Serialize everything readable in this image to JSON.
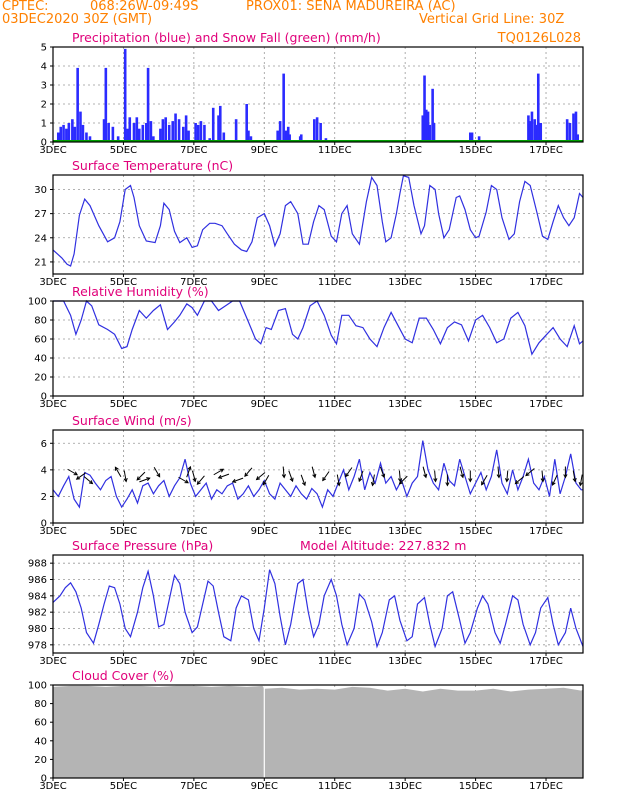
{
  "header": {
    "line1_left": "CPTEC:",
    "line1_coords": "068:26W-09:49S",
    "line1_station": "PROX01: SENA MADUREIRA (AC)",
    "line2_left": "03DEC2020 30Z (GMT)",
    "line2_right": "Vertical Grid Line: 30Z",
    "line3_right": "TQ0126L028"
  },
  "colors": {
    "header": "#ff8000",
    "title": "#e0007a",
    "precip": "#2b2bff",
    "snow": "#00a000",
    "line": "#3030e0",
    "cloud": "#b4b4b4",
    "grid": "#999999"
  },
  "x_axis": {
    "days": [
      "3DEC",
      "5DEC",
      "7DEC",
      "9DEC",
      "11DEC",
      "13DEC",
      "15DEC",
      "17DEC"
    ],
    "day_positions": [
      3,
      5,
      7,
      9,
      11,
      13,
      15,
      17
    ],
    "range": [
      3,
      18.05
    ]
  },
  "chart_data": [
    {
      "id": "precip",
      "type": "bar",
      "title": "Precipitation (blue) and Snow Fall (green) (mm/h)",
      "yticks": [
        0,
        1,
        2,
        3,
        4,
        5
      ],
      "ylim": [
        0,
        5
      ],
      "x_range": [
        3,
        18.05
      ],
      "x": [
        3.15,
        3.22,
        3.3,
        3.38,
        3.45,
        3.55,
        3.62,
        3.7,
        3.78,
        3.85,
        3.95,
        4.05,
        4.45,
        4.5,
        4.58,
        4.7,
        4.85,
        5.05,
        5.12,
        5.18,
        5.3,
        5.38,
        5.45,
        5.55,
        5.65,
        5.7,
        5.78,
        5.85,
        6.05,
        6.12,
        6.2,
        6.3,
        6.4,
        6.48,
        6.58,
        6.7,
        6.78,
        6.85,
        7.05,
        7.12,
        7.2,
        7.3,
        7.45,
        7.55,
        7.7,
        7.75,
        7.85,
        8.2,
        8.5,
        8.55,
        8.62,
        9.38,
        9.45,
        9.55,
        9.62,
        9.68,
        9.72,
        10.02,
        10.05,
        10.42,
        10.5,
        10.6,
        10.75,
        13.5,
        13.55,
        13.6,
        13.65,
        13.7,
        13.78,
        13.82,
        14.85,
        14.9,
        15.1,
        16.5,
        16.55,
        16.6,
        16.68,
        16.72,
        16.78,
        16.85,
        17.6,
        17.68,
        17.78,
        17.85,
        17.9
      ],
      "values": [
        0.5,
        0.8,
        0.9,
        0.7,
        1.0,
        1.2,
        0.8,
        3.9,
        1.6,
        0.9,
        0.5,
        0.3,
        1.2,
        3.9,
        1.0,
        0.8,
        0.3,
        4.9,
        0.7,
        1.3,
        1.0,
        1.3,
        0.7,
        0.9,
        1.0,
        3.9,
        1.1,
        0.3,
        0.7,
        1.2,
        1.3,
        0.9,
        1.1,
        1.5,
        1.2,
        0.8,
        1.4,
        0.6,
        1.0,
        0.9,
        1.1,
        0.9,
        0.2,
        1.8,
        1.4,
        1.9,
        0.5,
        1.2,
        2.0,
        0.6,
        0.3,
        0.6,
        1.1,
        3.6,
        0.6,
        0.8,
        0.4,
        0.3,
        0.4,
        1.2,
        1.3,
        1.0,
        0.2,
        1.4,
        3.5,
        1.7,
        1.6,
        0.9,
        2.8,
        1.0,
        0.5,
        0.5,
        0.3,
        1.4,
        1.1,
        1.6,
        1.2,
        0.9,
        3.6,
        1.0,
        1.2,
        1.0,
        1.5,
        1.6,
        0.4
      ],
      "snow": 0
    },
    {
      "id": "temp",
      "type": "line",
      "title": "Surface Temperature (nC)",
      "yticks": [
        21,
        24,
        27,
        30
      ],
      "ylim": [
        19.5,
        31.8
      ],
      "x_range": [
        3,
        18.05
      ],
      "x": [
        3,
        3.25,
        3.4,
        3.5,
        3.6,
        3.75,
        3.9,
        4.05,
        4.3,
        4.55,
        4.75,
        4.9,
        5.05,
        5.2,
        5.3,
        5.45,
        5.65,
        5.9,
        6.05,
        6.15,
        6.3,
        6.45,
        6.6,
        6.8,
        6.95,
        7.1,
        7.25,
        7.45,
        7.6,
        7.8,
        7.95,
        8.15,
        8.35,
        8.5,
        8.65,
        8.8,
        9.0,
        9.15,
        9.3,
        9.45,
        9.6,
        9.75,
        9.95,
        10.1,
        10.25,
        10.4,
        10.55,
        10.7,
        10.9,
        11.05,
        11.2,
        11.35,
        11.5,
        11.7,
        11.9,
        12.05,
        12.2,
        12.35,
        12.45,
        12.6,
        12.75,
        12.85,
        12.95,
        13.1,
        13.25,
        13.45,
        13.55,
        13.7,
        13.85,
        13.95,
        14.1,
        14.25,
        14.45,
        14.55,
        14.7,
        14.85,
        15.0,
        15.1,
        15.3,
        15.45,
        15.6,
        15.75,
        15.95,
        16.1,
        16.25,
        16.4,
        16.55,
        16.75,
        16.9,
        17.05,
        17.2,
        17.35,
        17.5,
        17.65,
        17.8,
        17.95,
        18.05
      ],
      "values": [
        22.5,
        21.5,
        20.7,
        20.5,
        22.0,
        26.8,
        28.8,
        28.0,
        25.5,
        23.5,
        24.0,
        26.0,
        30.0,
        30.5,
        29.0,
        25.5,
        23.6,
        23.4,
        25.5,
        28.3,
        27.5,
        24.8,
        23.4,
        24.0,
        22.8,
        23.0,
        25.0,
        25.8,
        25.8,
        25.5,
        24.5,
        23.2,
        22.5,
        22.3,
        23.5,
        26.5,
        27.0,
        25.5,
        23.0,
        24.5,
        28.0,
        28.5,
        27.0,
        23.2,
        23.2,
        26.0,
        28.0,
        27.5,
        24.2,
        23.5,
        27.0,
        28.0,
        24.5,
        23.2,
        28.5,
        31.5,
        30.5,
        26.0,
        23.5,
        24.0,
        27.0,
        29.5,
        31.7,
        31.5,
        28.0,
        24.5,
        25.5,
        30.5,
        30.0,
        27.0,
        24.0,
        25.0,
        29.0,
        29.2,
        27.5,
        25.0,
        24.0,
        24.2,
        27.2,
        30.5,
        30.0,
        26.5,
        23.8,
        24.5,
        28.5,
        31.0,
        30.5,
        27.0,
        24.2,
        23.8,
        26.0,
        28.0,
        26.5,
        25.5,
        26.5,
        29.5,
        29.0
      ]
    },
    {
      "id": "rh",
      "type": "line",
      "title": "Relative Humidity (%)",
      "yticks": [
        0,
        20,
        40,
        60,
        80,
        100
      ],
      "ylim": [
        0,
        100
      ],
      "x_range": [
        3,
        18.05
      ],
      "x": [
        3,
        3.3,
        3.5,
        3.65,
        3.8,
        3.95,
        4.1,
        4.3,
        4.55,
        4.75,
        4.95,
        5.1,
        5.25,
        5.45,
        5.65,
        5.85,
        6.05,
        6.25,
        6.45,
        6.6,
        6.8,
        6.95,
        7.1,
        7.3,
        7.5,
        7.7,
        7.9,
        8.1,
        8.3,
        8.55,
        8.75,
        8.9,
        9.05,
        9.2,
        9.4,
        9.6,
        9.8,
        9.95,
        10.1,
        10.3,
        10.5,
        10.7,
        10.9,
        11.05,
        11.2,
        11.4,
        11.6,
        11.8,
        12.0,
        12.2,
        12.4,
        12.6,
        12.8,
        13.0,
        13.2,
        13.4,
        13.6,
        13.8,
        14.0,
        14.2,
        14.4,
        14.6,
        14.8,
        15.0,
        15.2,
        15.4,
        15.6,
        15.8,
        16.0,
        16.2,
        16.4,
        16.6,
        16.8,
        17.0,
        17.2,
        17.4,
        17.6,
        17.8,
        17.95,
        18.05
      ],
      "values": [
        100,
        100,
        85,
        65,
        80,
        100,
        95,
        75,
        70,
        65,
        50,
        52,
        70,
        90,
        82,
        90,
        96,
        70,
        78,
        85,
        97,
        93,
        85,
        100,
        100,
        90,
        95,
        100,
        100,
        78,
        60,
        55,
        72,
        70,
        90,
        92,
        65,
        60,
        72,
        95,
        100,
        85,
        64,
        55,
        85,
        85,
        74,
        72,
        60,
        52,
        72,
        88,
        74,
        60,
        56,
        82,
        82,
        70,
        55,
        72,
        78,
        75,
        58,
        80,
        85,
        72,
        56,
        60,
        82,
        88,
        74,
        44,
        56,
        64,
        72,
        60,
        52,
        74,
        55,
        58
      ]
    },
    {
      "id": "wind",
      "type": "line",
      "title": "Surface Wind (m/s)",
      "yticks": [
        0,
        2,
        4,
        6
      ],
      "ylim": [
        0,
        7
      ],
      "x_range": [
        3,
        18.05
      ],
      "x": [
        3,
        3.15,
        3.3,
        3.45,
        3.6,
        3.75,
        3.9,
        4.05,
        4.2,
        4.35,
        4.5,
        4.65,
        4.8,
        4.95,
        5.1,
        5.25,
        5.4,
        5.55,
        5.7,
        5.85,
        6.0,
        6.15,
        6.3,
        6.45,
        6.6,
        6.75,
        6.9,
        7.05,
        7.2,
        7.35,
        7.5,
        7.65,
        7.8,
        7.95,
        8.1,
        8.25,
        8.4,
        8.55,
        8.7,
        8.85,
        9.0,
        9.15,
        9.3,
        9.45,
        9.6,
        9.75,
        9.9,
        10.05,
        10.2,
        10.35,
        10.5,
        10.65,
        10.8,
        10.95,
        11.1,
        11.25,
        11.4,
        11.55,
        11.7,
        11.85,
        12.0,
        12.15,
        12.3,
        12.45,
        12.6,
        12.75,
        12.9,
        13.05,
        13.2,
        13.35,
        13.5,
        13.65,
        13.8,
        13.95,
        14.1,
        14.25,
        14.4,
        14.55,
        14.7,
        14.85,
        15.0,
        15.15,
        15.3,
        15.45,
        15.6,
        15.75,
        15.9,
        16.05,
        16.2,
        16.35,
        16.5,
        16.65,
        16.8,
        16.95,
        17.1,
        17.25,
        17.4,
        17.55,
        17.7,
        17.85,
        18.0,
        18.05
      ],
      "values": [
        2.5,
        2.0,
        2.8,
        3.5,
        1.8,
        1.2,
        3.8,
        3.6,
        3.0,
        2.5,
        3.2,
        3.5,
        2.0,
        1.2,
        1.8,
        2.5,
        1.5,
        2.8,
        3.0,
        2.2,
        2.8,
        3.2,
        2.0,
        2.8,
        3.4,
        4.8,
        3.0,
        2.0,
        2.5,
        3.0,
        1.8,
        2.5,
        2.2,
        2.8,
        3.0,
        1.8,
        2.2,
        2.8,
        2.0,
        2.5,
        3.2,
        2.2,
        1.8,
        3.0,
        2.5,
        2.0,
        2.8,
        2.2,
        1.8,
        2.6,
        2.2,
        1.2,
        2.5,
        2.0,
        3.0,
        4.0,
        2.5,
        3.5,
        4.8,
        2.5,
        3.8,
        3.0,
        4.5,
        3.0,
        3.5,
        2.5,
        3.2,
        2.0,
        3.0,
        3.5,
        6.2,
        4.0,
        3.0,
        2.5,
        4.5,
        3.2,
        2.8,
        4.8,
        3.5,
        2.2,
        3.0,
        3.8,
        2.5,
        3.5,
        5.5,
        3.0,
        2.2,
        4.0,
        2.5,
        3.5,
        4.8,
        3.0,
        2.5,
        3.5,
        2.0,
        4.8,
        2.2,
        3.5,
        5.2,
        3.0,
        2.5,
        2.5
      ],
      "arrows": [
        {
          "x": 3.55,
          "dir": 120
        },
        {
          "x": 3.8,
          "dir": 235
        },
        {
          "x": 4.0,
          "dir": 130
        },
        {
          "x": 4.85,
          "dir": 330
        },
        {
          "x": 5.05,
          "dir": 170
        },
        {
          "x": 5.6,
          "dir": 70
        },
        {
          "x": 5.95,
          "dir": 150
        },
        {
          "x": 5.5,
          "dir": 225
        },
        {
          "x": 6.7,
          "dir": 120
        },
        {
          "x": 6.85,
          "dir": 20
        },
        {
          "x": 7.0,
          "dir": 165
        },
        {
          "x": 7.2,
          "dir": 220
        },
        {
          "x": 7.7,
          "dir": 60
        },
        {
          "x": 7.85,
          "dir": 250
        },
        {
          "x": 8.25,
          "dir": 250
        },
        {
          "x": 8.55,
          "dir": 220
        },
        {
          "x": 8.9,
          "dir": 230
        },
        {
          "x": 9.05,
          "dir": 210
        },
        {
          "x": 9.55,
          "dir": 175
        },
        {
          "x": 9.75,
          "dir": 160
        },
        {
          "x": 10.1,
          "dir": 160
        },
        {
          "x": 10.4,
          "dir": 165
        },
        {
          "x": 10.75,
          "dir": 215
        },
        {
          "x": 11.1,
          "dir": 170
        },
        {
          "x": 11.4,
          "dir": 215
        },
        {
          "x": 11.75,
          "dir": 200
        },
        {
          "x": 12.1,
          "dir": 190
        },
        {
          "x": 12.35,
          "dir": 160
        },
        {
          "x": 12.85,
          "dir": 175
        },
        {
          "x": 12.95,
          "dir": 225
        },
        {
          "x": 13.55,
          "dir": 165
        },
        {
          "x": 13.85,
          "dir": 175
        },
        {
          "x": 14.2,
          "dir": 180
        },
        {
          "x": 14.6,
          "dir": 165
        },
        {
          "x": 14.85,
          "dir": 180
        },
        {
          "x": 15.25,
          "dir": 210
        },
        {
          "x": 15.65,
          "dir": 175
        },
        {
          "x": 15.9,
          "dir": 185
        },
        {
          "x": 16.25,
          "dir": 230
        },
        {
          "x": 16.55,
          "dir": 230
        },
        {
          "x": 16.9,
          "dir": 175
        },
        {
          "x": 17.25,
          "dir": 205
        },
        {
          "x": 17.55,
          "dir": 180
        },
        {
          "x": 17.8,
          "dir": 170
        },
        {
          "x": 18.0,
          "dir": 190
        }
      ]
    },
    {
      "id": "pres",
      "type": "line",
      "title": "Surface Pressure (hPa)",
      "subtitle": "Model Altitude: 227.832 m",
      "yticks": [
        978,
        980,
        982,
        984,
        986,
        988
      ],
      "ylim": [
        977,
        989
      ],
      "x_range": [
        3,
        18.05
      ],
      "x": [
        3,
        3.2,
        3.35,
        3.5,
        3.65,
        3.8,
        3.95,
        4.15,
        4.3,
        4.45,
        4.6,
        4.75,
        4.9,
        5.05,
        5.2,
        5.4,
        5.55,
        5.7,
        5.85,
        6.0,
        6.15,
        6.3,
        6.45,
        6.6,
        6.75,
        6.95,
        7.1,
        7.25,
        7.4,
        7.55,
        7.7,
        7.85,
        8.05,
        8.2,
        8.35,
        8.55,
        8.7,
        8.85,
        9.0,
        9.15,
        9.3,
        9.45,
        9.6,
        9.75,
        9.95,
        10.1,
        10.25,
        10.4,
        10.55,
        10.7,
        10.9,
        11.05,
        11.2,
        11.35,
        11.55,
        11.7,
        11.85,
        12.05,
        12.2,
        12.35,
        12.55,
        12.7,
        12.85,
        13.05,
        13.2,
        13.35,
        13.55,
        13.7,
        13.85,
        14.05,
        14.2,
        14.35,
        14.55,
        14.7,
        14.85,
        15.05,
        15.2,
        15.35,
        15.55,
        15.7,
        15.85,
        16.05,
        16.2,
        16.35,
        16.55,
        16.7,
        16.85,
        17.05,
        17.2,
        17.35,
        17.55,
        17.7,
        17.85,
        18.05
      ],
      "values": [
        983.2,
        984.0,
        985.0,
        985.6,
        984.5,
        982.5,
        979.5,
        978.2,
        980.5,
        983.0,
        985.2,
        985.0,
        983.0,
        980.0,
        979.0,
        982.0,
        985.0,
        987.0,
        984.0,
        980.2,
        980.5,
        983.5,
        986.5,
        985.5,
        982.0,
        979.5,
        980.2,
        983.0,
        985.8,
        985.2,
        982.0,
        979.0,
        978.5,
        982.5,
        984.0,
        983.5,
        980.0,
        978.5,
        982.5,
        987.2,
        985.5,
        981.5,
        978.0,
        980.5,
        985.5,
        986.0,
        982.0,
        979.0,
        980.5,
        984.0,
        986.0,
        984.0,
        980.5,
        978.0,
        980.0,
        984.2,
        983.5,
        980.8,
        977.8,
        979.5,
        983.5,
        984.0,
        981.0,
        978.5,
        979.0,
        983.0,
        983.8,
        980.5,
        977.8,
        980.0,
        984.0,
        984.5,
        981.0,
        978.2,
        979.5,
        982.5,
        984.0,
        983.0,
        979.5,
        978.2,
        980.5,
        984.0,
        983.5,
        980.5,
        978.0,
        979.5,
        982.5,
        983.8,
        980.5,
        978.0,
        979.5,
        982.5,
        980.0,
        977.8
      ]
    },
    {
      "id": "cloud",
      "type": "area",
      "title": "Cloud Cover (%)",
      "yticks": [
        0,
        20,
        40,
        60,
        80,
        100
      ],
      "ylim": [
        0,
        100
      ],
      "x_range": [
        3,
        18.05
      ],
      "x": [
        3,
        3.5,
        4.0,
        4.5,
        5.0,
        5.5,
        6.0,
        6.5,
        7.0,
        7.5,
        8.0,
        8.5,
        8.95,
        9.0,
        9.5,
        10.0,
        10.5,
        11.0,
        11.5,
        12.0,
        12.5,
        13.0,
        13.5,
        14.0,
        14.5,
        15.0,
        15.5,
        16.0,
        16.5,
        17.0,
        17.5,
        18.0,
        18.05
      ],
      "values": [
        98,
        99,
        99,
        98,
        99,
        99,
        98,
        99,
        99,
        98,
        99,
        98,
        99,
        96,
        97,
        95,
        96,
        95,
        98,
        97,
        94,
        96,
        93,
        96,
        94,
        94,
        96,
        93,
        95,
        96,
        97,
        94,
        95
      ]
    }
  ]
}
